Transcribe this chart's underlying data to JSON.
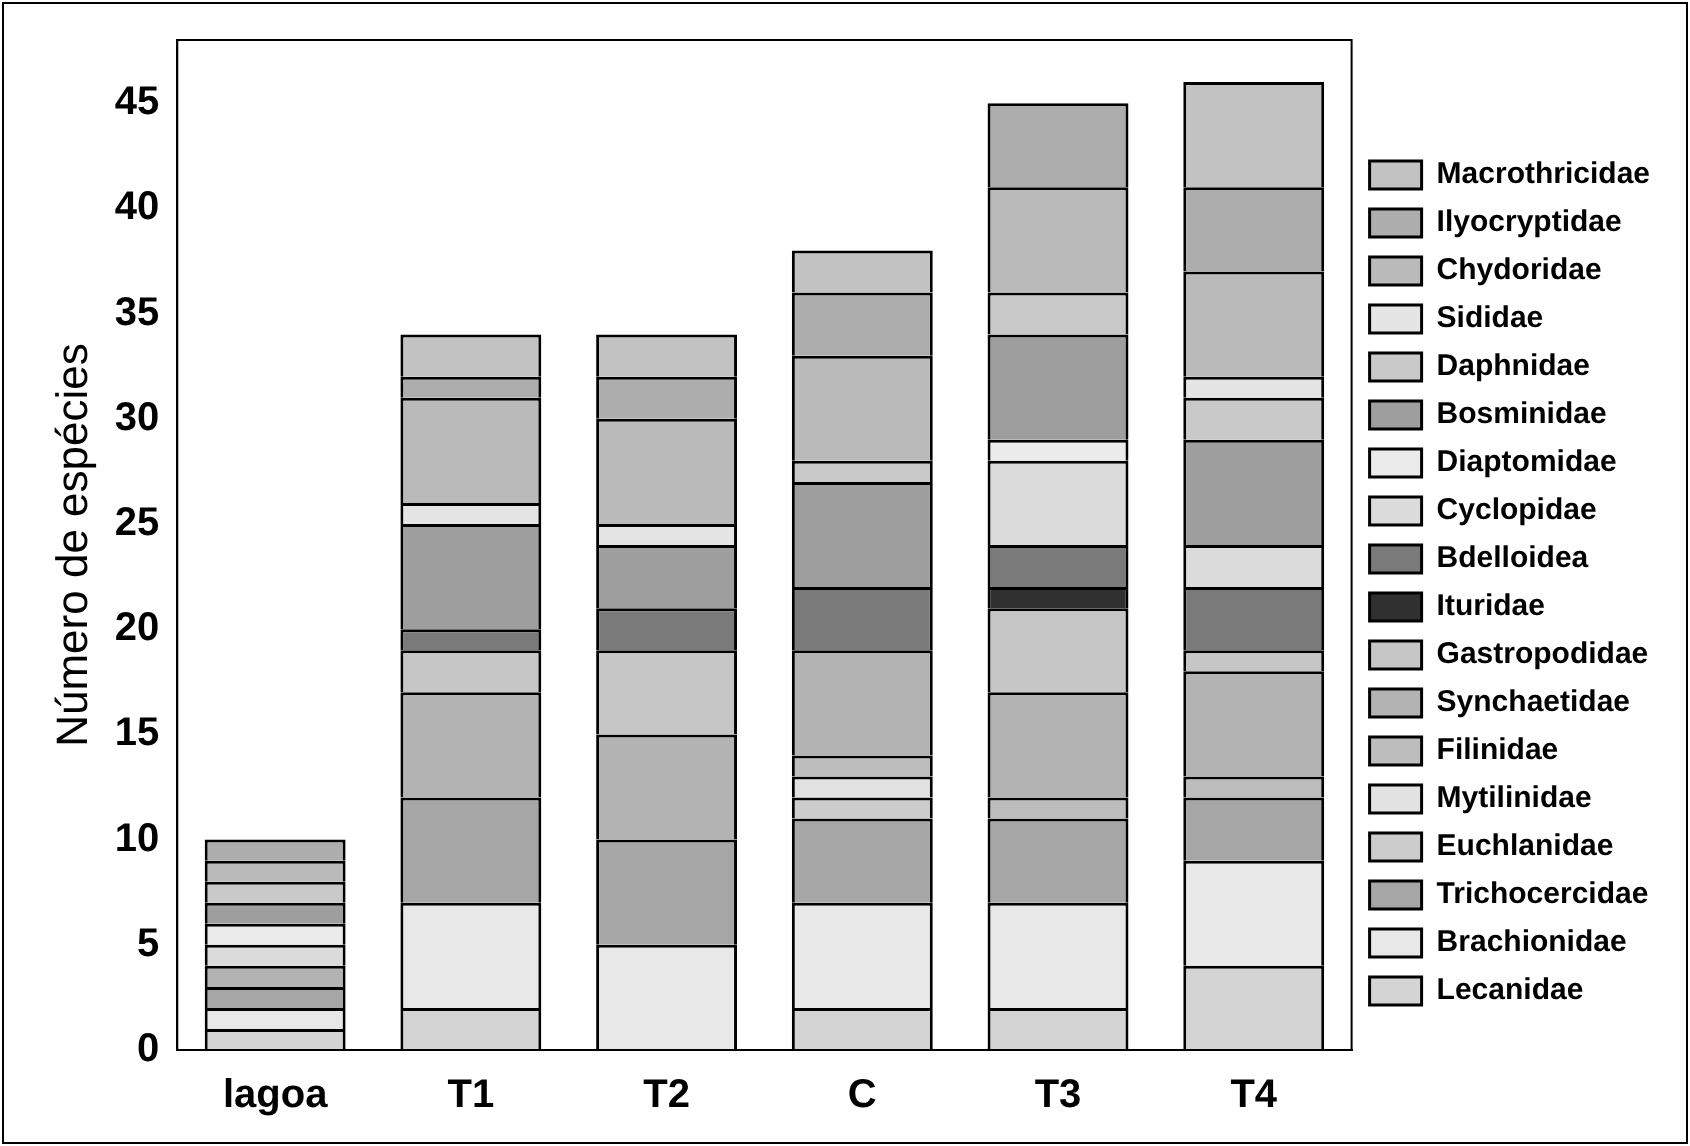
{
  "chart_data": {
    "type": "bar",
    "stacked": true,
    "ylabel": "Número de espécies",
    "categories": [
      "lagoa",
      "T1",
      "T2",
      "C",
      "T3",
      "T4"
    ],
    "ylim": [
      0,
      48
    ],
    "yticks": [
      0,
      5,
      10,
      15,
      20,
      25,
      30,
      35,
      40,
      45
    ],
    "grid": false,
    "legend": "right",
    "series": [
      {
        "name": "Lecanidae",
        "color": "#d4d4d4",
        "values": [
          1,
          2,
          0,
          2,
          2,
          4
        ]
      },
      {
        "name": "Brachionidae",
        "color": "#e8e8e8",
        "values": [
          1,
          5,
          5,
          5,
          5,
          5
        ]
      },
      {
        "name": "Trichocercidae",
        "color": "#a6a6a6",
        "values": [
          1,
          5,
          5,
          4,
          4,
          3
        ]
      },
      {
        "name": "Euchlanidae",
        "color": "#cccccc",
        "values": [
          0,
          0,
          0,
          1,
          0,
          0
        ]
      },
      {
        "name": "Mytilinidae",
        "color": "#e2e2e2",
        "values": [
          0,
          0,
          0,
          1,
          0,
          0
        ]
      },
      {
        "name": "Filinidae",
        "color": "#bdbdbd",
        "values": [
          0,
          0,
          0,
          1,
          1,
          1
        ]
      },
      {
        "name": "Synchaetidae",
        "color": "#b3b3b3",
        "values": [
          1,
          5,
          5,
          5,
          5,
          5
        ]
      },
      {
        "name": "Gastropodidae",
        "color": "#c6c6c6",
        "values": [
          0,
          2,
          4,
          0,
          4,
          1
        ]
      },
      {
        "name": "Ituridae",
        "color": "#303030",
        "values": [
          0,
          0,
          0,
          0,
          1,
          0
        ]
      },
      {
        "name": "Bdelloidea",
        "color": "#7a7a7a",
        "values": [
          0,
          1,
          2,
          3,
          2,
          3
        ]
      },
      {
        "name": "Cyclopidae",
        "color": "#dbdbdb",
        "values": [
          1,
          0,
          0,
          0,
          4,
          2
        ]
      },
      {
        "name": "Diaptomidae",
        "color": "#ebebeb",
        "values": [
          1,
          0,
          0,
          0,
          1,
          0
        ]
      },
      {
        "name": "Bosminidae",
        "color": "#9e9e9e",
        "values": [
          1,
          5,
          3,
          5,
          5,
          5
        ]
      },
      {
        "name": "Daphnidae",
        "color": "#c9c9c9",
        "values": [
          1,
          0,
          0,
          1,
          2,
          2
        ]
      },
      {
        "name": "Sididae",
        "color": "#e5e5e5",
        "values": [
          0,
          1,
          1,
          0,
          0,
          1
        ]
      },
      {
        "name": "Chydoridae",
        "color": "#bababa",
        "values": [
          1,
          5,
          5,
          5,
          5,
          5
        ]
      },
      {
        "name": "Ilyocryptidae",
        "color": "#adadad",
        "values": [
          1,
          1,
          2,
          3,
          4,
          4
        ]
      },
      {
        "name": "Macrothricidae",
        "color": "#c2c2c2",
        "values": [
          0,
          2,
          2,
          2,
          0,
          5
        ]
      }
    ]
  }
}
